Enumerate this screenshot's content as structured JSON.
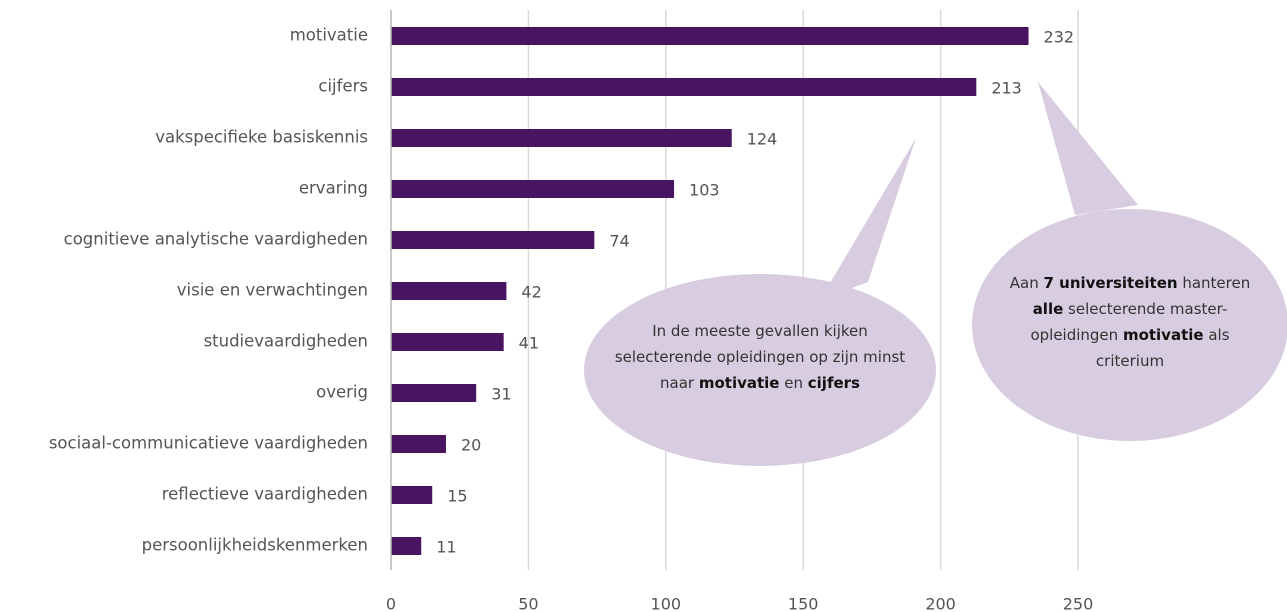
{
  "chart_data": {
    "type": "barh",
    "categories": [
      "motivatie",
      "cijfers",
      "vakspecifieke basiskennis",
      "ervaring",
      "cognitieve analytische vaardigheden",
      "visie en verwachtingen",
      "studievaardigheden",
      "overig",
      "sociaal-communicatieve vaardigheden",
      "reflectieve vaardigheden",
      "persoonlijkheidskenmerken"
    ],
    "values": [
      232,
      213,
      124,
      103,
      74,
      42,
      41,
      31,
      20,
      15,
      11
    ],
    "color": "#4a1560",
    "xlim": [
      0,
      250
    ],
    "xticks": [
      0,
      50,
      100,
      150,
      200,
      250
    ],
    "grid": true,
    "annotations": [
      {
        "parts": [
          {
            "text": "In de meeste gevallen kijken selecterende opleidingen op zijn minst naar ",
            "bold": false
          },
          {
            "text": "motivatie",
            "bold": true
          },
          {
            "text": " en ",
            "bold": false
          },
          {
            "text": "cijfers",
            "bold": true
          }
        ]
      },
      {
        "parts": [
          {
            "text": "Aan ",
            "bold": false
          },
          {
            "text": "7 universiteiten",
            "bold": true
          },
          {
            "text": " hanteren ",
            "bold": false
          },
          {
            "text": "alle",
            "bold": true
          },
          {
            "text": " selecterende master-opleidingen ",
            "bold": false
          },
          {
            "text": "motivatie",
            "bold": true
          },
          {
            "text": " als criterium",
            "bold": false
          }
        ]
      }
    ]
  }
}
